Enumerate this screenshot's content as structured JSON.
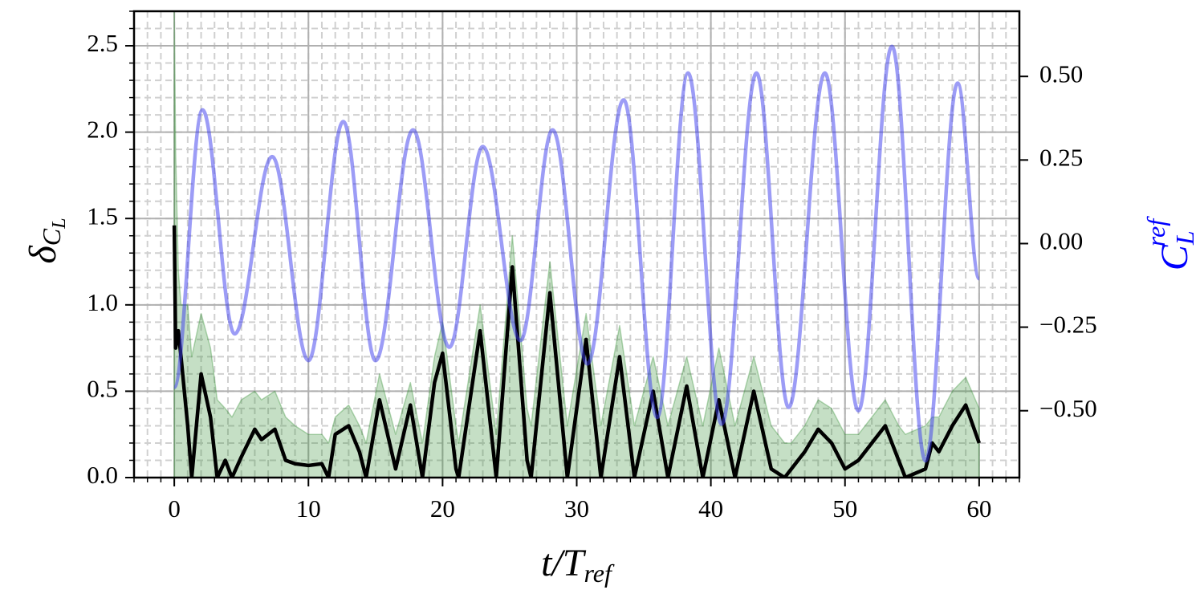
{
  "chart_data": {
    "type": "line",
    "xlabel": [
      "t/T",
      "ref"
    ],
    "ylabel": [
      "δ",
      "C",
      "L"
    ],
    "y2label": [
      "C",
      "L",
      "ref"
    ],
    "y2label_color": "#0000ff",
    "xlim": [
      -3,
      63
    ],
    "ylim": [
      0,
      2.7
    ],
    "y2lim": [
      -0.7,
      0.695
    ],
    "xticks": [
      0,
      10,
      20,
      30,
      40,
      50,
      60
    ],
    "yticks": [
      {
        "value": 0,
        "label": "0.0"
      },
      0.5,
      {
        "value": 1,
        "label": "1.0"
      },
      1.5,
      {
        "value": 2,
        "label": "2.0"
      },
      2.5
    ],
    "y2ticks": [
      {
        "value": -0.5,
        "label": "−0.50"
      },
      {
        "value": -0.25,
        "label": "−0.25"
      },
      {
        "value": 0,
        "label": "0.00"
      },
      {
        "value": 0.25,
        "label": "0.25"
      },
      {
        "value": 0.5,
        "label": "0.50"
      }
    ],
    "grid": true,
    "xminor_step": 1,
    "yminor_step": 0.1,
    "series": [
      {
        "kind": "area",
        "color": "#2e8b2e",
        "x": [
          0,
          0.1,
          0.3,
          0.5,
          1.0,
          1.3,
          2.0,
          2.7,
          3.2,
          3.8,
          4.3,
          5,
          6,
          6.5,
          7.5,
          8.3,
          9,
          10,
          11,
          11.5,
          12,
          13,
          13.8,
          14.3,
          15.3,
          16.5,
          17.6,
          18.5,
          19.4,
          20,
          21,
          21.2,
          22.8,
          24,
          25.2,
          26.3,
          26.6,
          28.0,
          29.3,
          30.7,
          31.8,
          33.2,
          34.3,
          35.7,
          36.8,
          38.2,
          39.4,
          40.6,
          41.8,
          43.2,
          44.5,
          45.5,
          46,
          47,
          48,
          49,
          50,
          51,
          52,
          53,
          54,
          54.5,
          56,
          56.5,
          57,
          58,
          59,
          60
        ],
        "values": [
          2.7,
          1.9,
          1.2,
          1.0,
          1.0,
          0.7,
          0.95,
          0.75,
          0.45,
          0.4,
          0.35,
          0.45,
          0.5,
          0.45,
          0.5,
          0.35,
          0.3,
          0.25,
          0.25,
          0.2,
          0.35,
          0.42,
          0.3,
          0.2,
          0.6,
          0.25,
          0.55,
          0.2,
          0.7,
          0.9,
          0.3,
          0.2,
          1.0,
          0.25,
          1.4,
          0.4,
          0.3,
          1.25,
          0.3,
          0.95,
          0.3,
          0.88,
          0.3,
          0.7,
          0.3,
          0.7,
          0.3,
          0.75,
          0.3,
          0.7,
          0.3,
          0.2,
          0.2,
          0.3,
          0.45,
          0.4,
          0.25,
          0.25,
          0.35,
          0.45,
          0.3,
          0.25,
          0.3,
          0.35,
          0.35,
          0.5,
          0.58,
          0.4
        ]
      },
      {
        "kind": "line",
        "color": "#000000",
        "x": [
          0,
          0.1,
          0.3,
          0.5,
          1.0,
          1.3,
          2.0,
          2.7,
          3.2,
          3.8,
          4.3,
          5,
          6,
          6.5,
          7.5,
          8.3,
          9,
          10,
          11,
          11.5,
          12,
          13,
          13.8,
          14.3,
          15.3,
          16.5,
          17.6,
          18.5,
          19.4,
          20,
          21,
          21.2,
          22.8,
          24,
          25.2,
          26.3,
          26.6,
          28.0,
          29.3,
          30.7,
          31.8,
          33.2,
          34.3,
          35.7,
          36.8,
          38.2,
          39.4,
          40.6,
          41.8,
          43.2,
          44.5,
          45.5,
          46,
          47,
          48,
          49,
          50,
          51,
          52,
          53,
          54,
          54.5,
          56,
          56.5,
          57,
          58,
          59,
          60
        ],
        "values": [
          1.46,
          0.75,
          0.85,
          0.7,
          0.3,
          0.0,
          0.6,
          0.35,
          0.0,
          0.1,
          0.0,
          0.12,
          0.28,
          0.22,
          0.28,
          0.1,
          0.08,
          0.07,
          0.08,
          0.0,
          0.25,
          0.3,
          0.15,
          0.0,
          0.45,
          0.05,
          0.42,
          0.0,
          0.55,
          0.72,
          0.05,
          0.0,
          0.85,
          0.0,
          1.22,
          0.1,
          0.0,
          1.07,
          0.0,
          0.8,
          0.0,
          0.7,
          0.0,
          0.5,
          0.0,
          0.53,
          0.0,
          0.45,
          0.0,
          0.5,
          0.05,
          0.0,
          0.05,
          0.15,
          0.28,
          0.2,
          0.05,
          0.1,
          0.2,
          0.3,
          0.1,
          0.0,
          0.05,
          0.2,
          0.15,
          0.3,
          0.42,
          0.2
        ]
      },
      {
        "kind": "smooth",
        "axis": "y2",
        "color": "#3a3aee",
        "x": [
          0,
          2.1,
          4.5,
          7.3,
          10.0,
          12.6,
          15.0,
          17.8,
          20.5,
          23.0,
          25.8,
          28.2,
          30.8,
          33.5,
          36.0,
          38.3,
          40.8,
          43.4,
          45.8,
          48.5,
          51.0,
          53.5,
          56.0,
          58.4,
          60
        ],
        "values": [
          -0.43,
          0.4,
          -0.27,
          0.26,
          -0.35,
          0.365,
          -0.35,
          0.34,
          -0.31,
          0.29,
          -0.29,
          0.34,
          -0.36,
          0.43,
          -0.52,
          0.51,
          -0.54,
          0.51,
          -0.49,
          0.51,
          -0.5,
          0.59,
          -0.65,
          0.48,
          -0.105
        ]
      }
    ]
  }
}
